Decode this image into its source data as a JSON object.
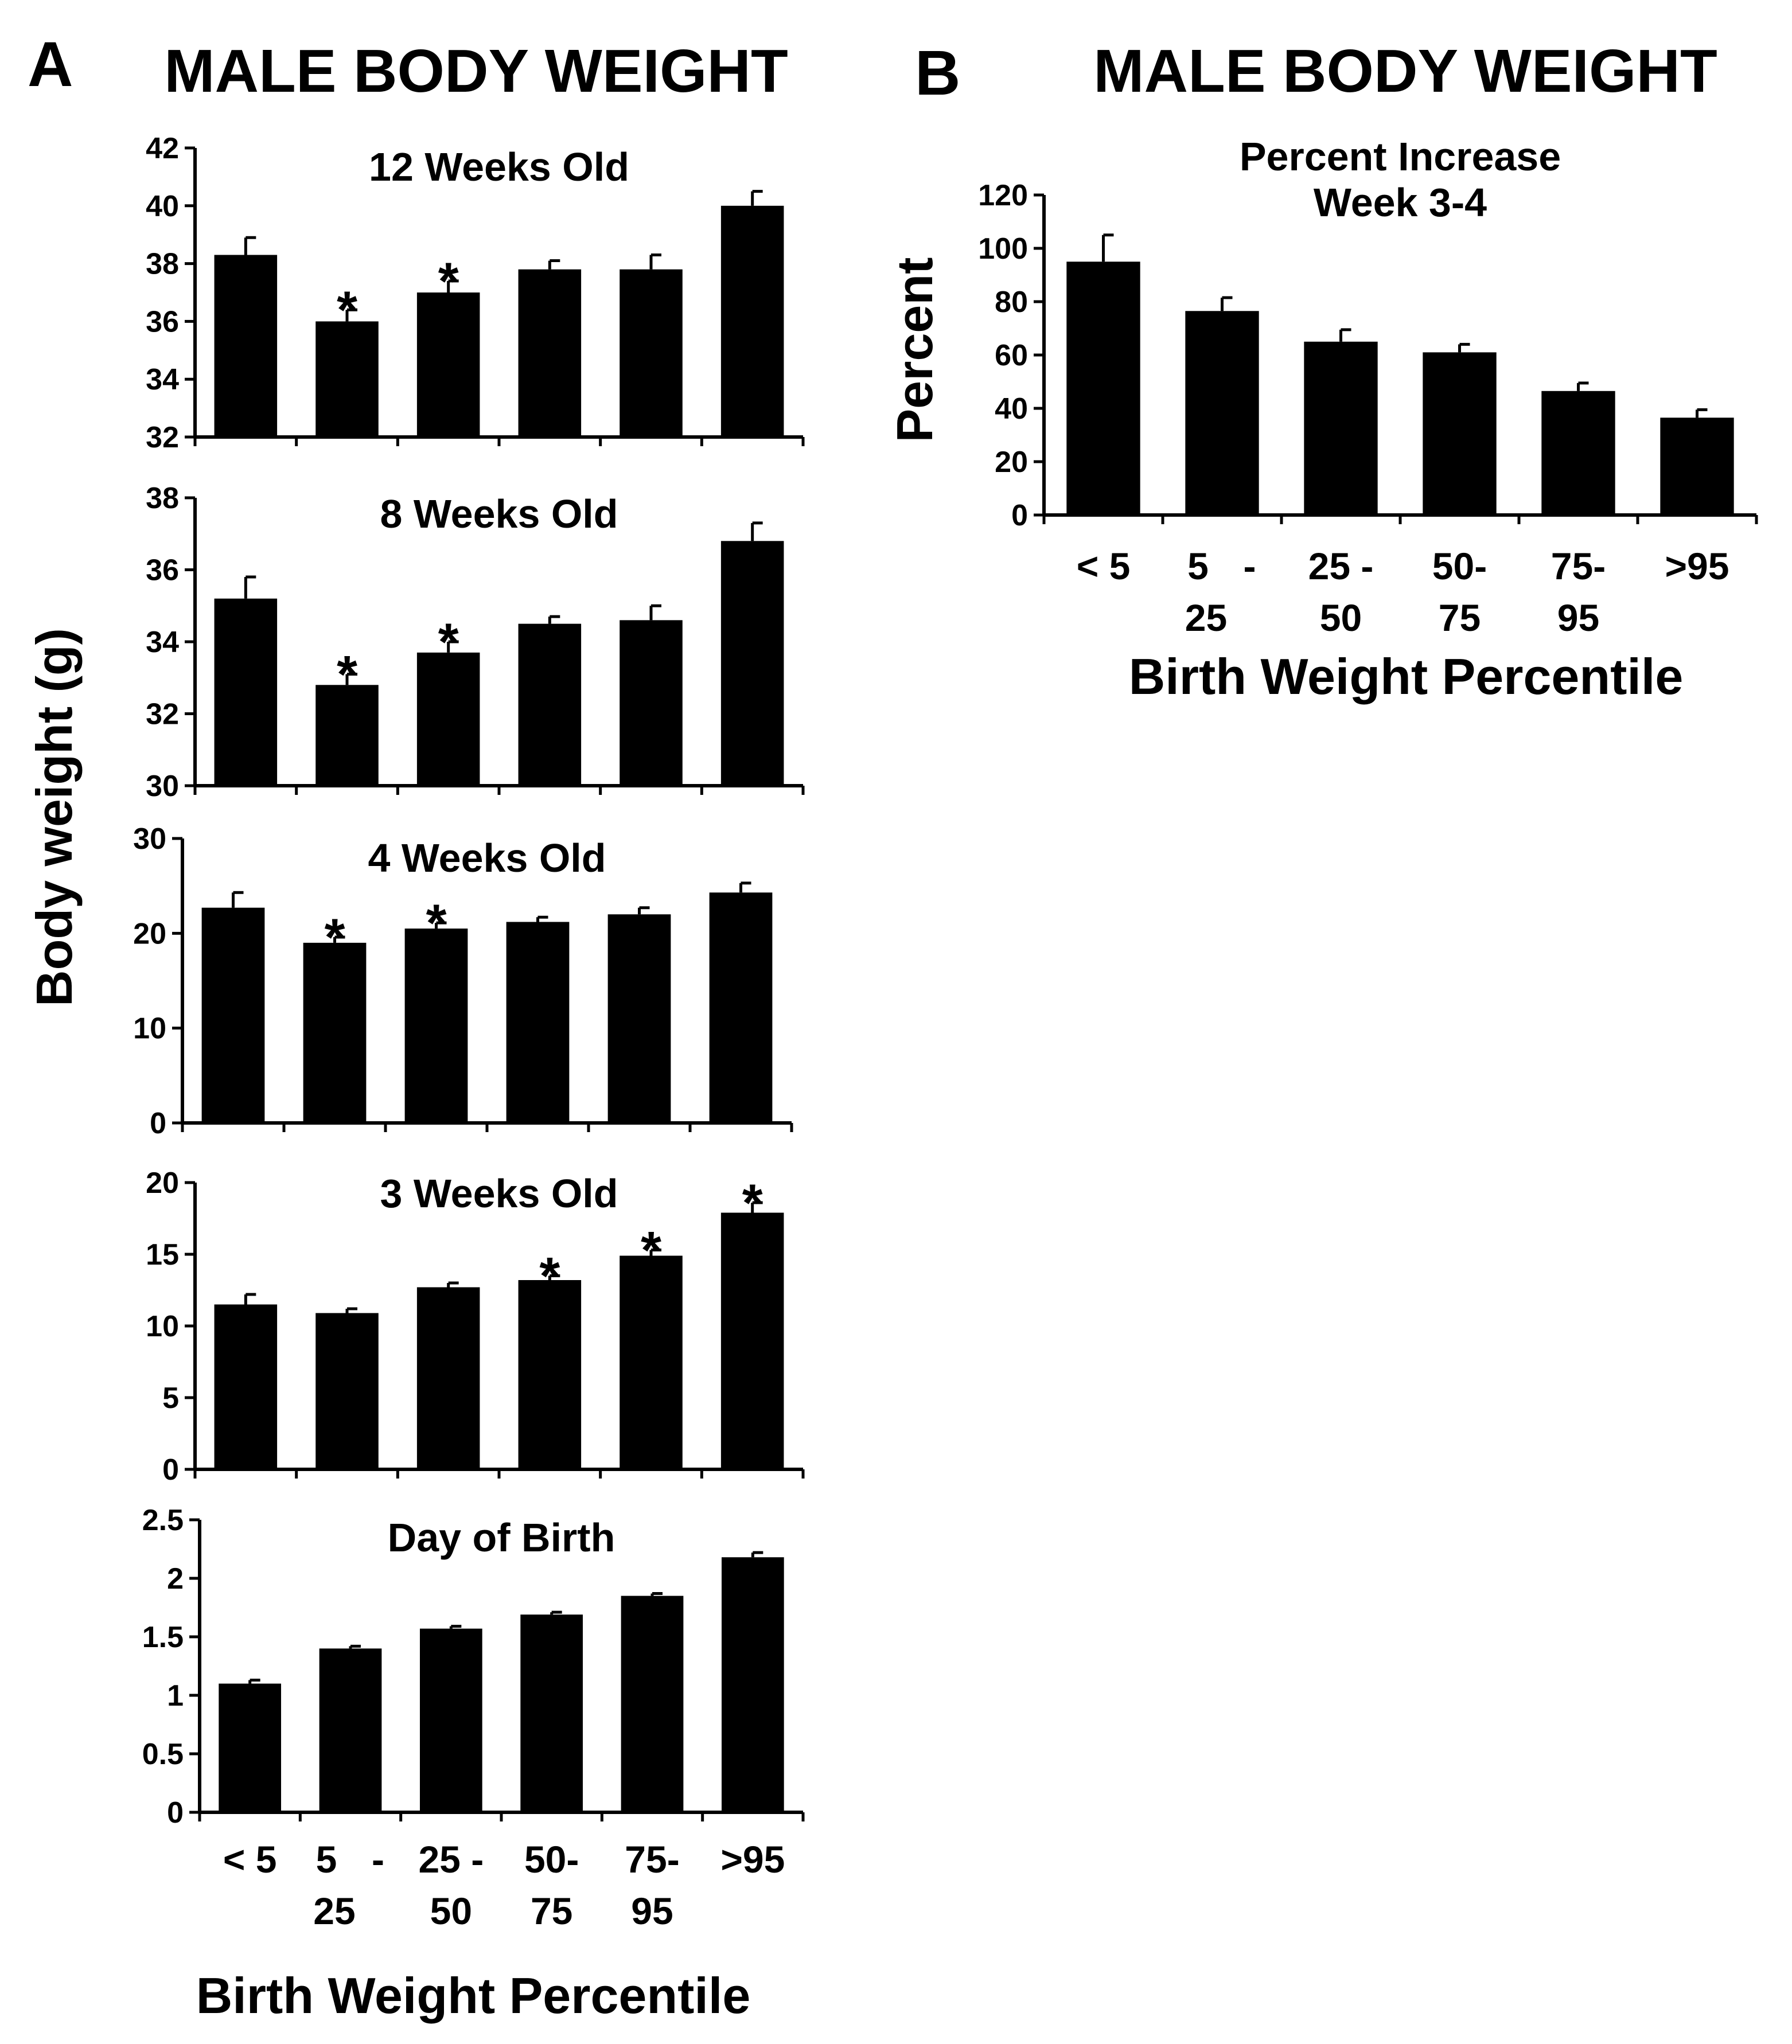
{
  "figure": {
    "panel_a_letter": "A",
    "panel_a_title": "MALE BODY WEIGHT",
    "panel_a_ylabel": "Body weight (g)",
    "panel_a_xlabel": "Birth Weight Percentile",
    "panel_b_letter": "B",
    "panel_b_title": "MALE BODY WEIGHT",
    "colors": {
      "bar": "#000000",
      "axis": "#000000",
      "background": "#ffffff"
    }
  },
  "chart_data": [
    {
      "id": "a-12wk",
      "type": "bar",
      "title": "12 Weeks Old",
      "categories": [
        "< 5",
        "5 - 25",
        "25 - 50",
        "50- 75",
        "75- 95",
        ">95"
      ],
      "values": [
        38.3,
        36.0,
        37.0,
        37.8,
        37.8,
        40.0
      ],
      "errors": [
        0.6,
        0.4,
        0.4,
        0.3,
        0.5,
        0.5
      ],
      "significant": [
        false,
        true,
        true,
        false,
        false,
        false
      ],
      "significance_marker": "*",
      "ylim": [
        32,
        42
      ],
      "yticks": [
        32,
        34,
        36,
        38,
        40,
        42
      ],
      "ytick_labels": [
        "32",
        "34",
        "36",
        "38",
        "40",
        "42"
      ],
      "xlabel": "",
      "ylabel": "Body weight (g)"
    },
    {
      "id": "a-8wk",
      "type": "bar",
      "title": "8 Weeks Old",
      "categories": [
        "< 5",
        "5 - 25",
        "25 - 50",
        "50- 75",
        "75- 95",
        ">95"
      ],
      "values": [
        35.2,
        32.8,
        33.7,
        34.5,
        34.6,
        36.8
      ],
      "errors": [
        0.6,
        0.3,
        0.3,
        0.2,
        0.4,
        0.5
      ],
      "significant": [
        false,
        true,
        true,
        false,
        false,
        false
      ],
      "significance_marker": "*",
      "ylim": [
        30,
        38
      ],
      "yticks": [
        30,
        32,
        34,
        36,
        38
      ],
      "ytick_labels": [
        "30",
        "32",
        "34",
        "36",
        "38"
      ],
      "xlabel": "",
      "ylabel": "Body weight (g)"
    },
    {
      "id": "a-4wk",
      "type": "bar",
      "title": "4 Weeks Old",
      "categories": [
        "< 5",
        "5 - 25",
        "25 - 50",
        "50- 75",
        "75- 95",
        ">95"
      ],
      "values": [
        22.7,
        19.0,
        20.5,
        21.2,
        22.0,
        24.3
      ],
      "errors": [
        1.6,
        0.6,
        0.6,
        0.5,
        0.7,
        1.0
      ],
      "significant": [
        false,
        true,
        true,
        false,
        false,
        false
      ],
      "significance_marker": "*",
      "ylim": [
        0,
        30
      ],
      "yticks": [
        0,
        10,
        20,
        30
      ],
      "ytick_labels": [
        "0",
        "10",
        "20",
        "30"
      ],
      "xlabel": "",
      "ylabel": "Body weight (g)"
    },
    {
      "id": "a-3wk",
      "type": "bar",
      "title": "3 Weeks Old",
      "categories": [
        "< 5",
        "5 - 25",
        "25 - 50",
        "50- 75",
        "75- 95",
        ">95"
      ],
      "values": [
        11.5,
        10.9,
        12.7,
        13.2,
        14.9,
        17.9
      ],
      "errors": [
        0.7,
        0.3,
        0.3,
        0.3,
        0.4,
        0.7
      ],
      "significant": [
        false,
        false,
        false,
        true,
        true,
        true
      ],
      "significance_marker": "*",
      "ylim": [
        0,
        20
      ],
      "yticks": [
        0,
        5,
        10,
        15,
        20
      ],
      "ytick_labels": [
        "0",
        "5",
        "10",
        "15",
        "20"
      ],
      "xlabel": "",
      "ylabel": "Body weight (g)"
    },
    {
      "id": "a-birth",
      "type": "bar",
      "title": "Day of Birth",
      "categories": [
        "< 5",
        "5 - 25",
        "25 - 50",
        "50- 75",
        "75- 95",
        ">95"
      ],
      "category_lines": [
        [
          "< 5"
        ],
        [
          "5",
          "-",
          "25"
        ],
        [
          "25 -",
          "50"
        ],
        [
          "50-",
          "75"
        ],
        [
          "75-",
          "95"
        ],
        [
          ">95"
        ]
      ],
      "values": [
        1.1,
        1.4,
        1.57,
        1.69,
        1.85,
        2.18
      ],
      "errors": [
        0.03,
        0.02,
        0.02,
        0.02,
        0.02,
        0.04
      ],
      "significant": [
        false,
        false,
        false,
        false,
        false,
        false
      ],
      "significance_marker": "*",
      "ylim": [
        0,
        2.5
      ],
      "yticks": [
        0,
        0.5,
        1,
        1.5,
        2,
        2.5
      ],
      "ytick_labels": [
        "0",
        "0.5",
        "1",
        "1.5",
        "2",
        "2.5"
      ],
      "xlabel": "Birth Weight Percentile",
      "ylabel": "Body weight (g)"
    },
    {
      "id": "b-increase",
      "type": "bar",
      "title": "Percent Increase",
      "subtitle": "Week 3-4",
      "categories": [
        "< 5",
        "5 - 25",
        "25 - 50",
        "50- 75",
        "75- 95",
        ">95"
      ],
      "category_lines": [
        [
          "< 5"
        ],
        [
          "5",
          "-",
          "25"
        ],
        [
          "25 -",
          "50"
        ],
        [
          "50-",
          "75"
        ],
        [
          "75-",
          "95"
        ],
        [
          ">95"
        ]
      ],
      "values": [
        95,
        76.5,
        65,
        61,
        46.5,
        36.5
      ],
      "errors": [
        10,
        5,
        4.5,
        3,
        3,
        3
      ],
      "significant": [
        false,
        false,
        false,
        false,
        false,
        false
      ],
      "significance_marker": "*",
      "ylim": [
        0,
        120
      ],
      "yticks": [
        0,
        20,
        40,
        60,
        80,
        100,
        120
      ],
      "ytick_labels": [
        "0",
        "20",
        "40",
        "60",
        "80",
        "100",
        "120"
      ],
      "xlabel": "Birth Weight Percentile",
      "ylabel": "Percent"
    }
  ]
}
